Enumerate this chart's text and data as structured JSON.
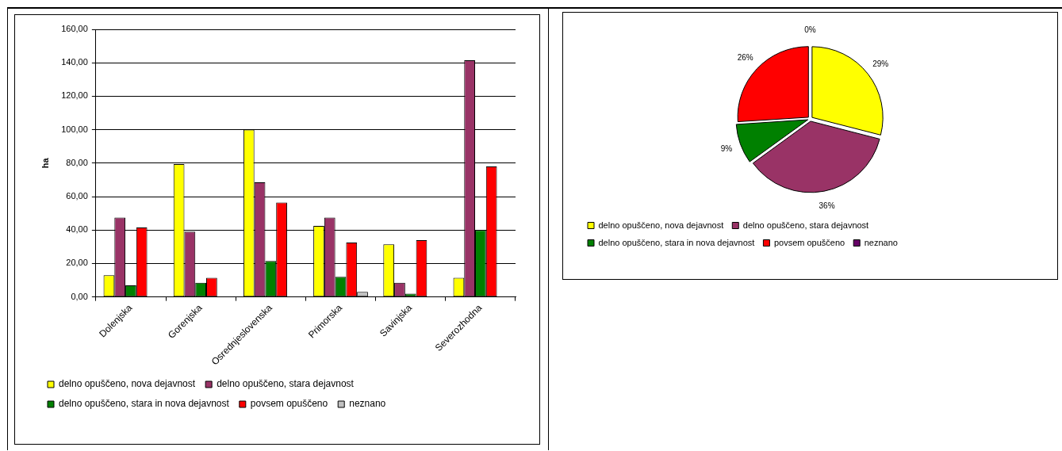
{
  "chart_data": [
    {
      "type": "bar",
      "ylabel": "ha",
      "categories": [
        "Dolenjska",
        "Gorenjska",
        "Osrednjeslovenska",
        "Primorska",
        "Savinjska",
        "Severozhodna"
      ],
      "series": [
        {
          "name": "delno opuščeno, nova dejavnost",
          "color": "#ffff00",
          "values": [
            13,
            79.5,
            100,
            42.5,
            31.5,
            11.5
          ]
        },
        {
          "name": "delno opuščeno, stara dejavnost",
          "color": "#993366",
          "values": [
            47.5,
            39,
            68.5,
            47.5,
            8.5,
            141.5
          ]
        },
        {
          "name": "delno opuščeno, stara in nova dejavnost",
          "color": "#008000",
          "values": [
            7,
            8.5,
            21.5,
            12,
            2,
            40
          ]
        },
        {
          "name": "povsem opuščeno",
          "color": "#ff0000",
          "values": [
            41.5,
            11.5,
            56.5,
            32.5,
            34,
            78
          ]
        },
        {
          "name": "neznano",
          "color": "#c0c0c0",
          "values": [
            null,
            null,
            null,
            3,
            null,
            null
          ]
        }
      ],
      "ylim": [
        0,
        160
      ],
      "yticks": [
        {
          "value": 0,
          "label": "0,00"
        },
        {
          "value": 20,
          "label": "20,00"
        },
        {
          "value": 40,
          "label": "40,00"
        },
        {
          "value": 60,
          "label": "60,00"
        },
        {
          "value": 80,
          "label": "80,00"
        },
        {
          "value": 100,
          "label": "100,00"
        },
        {
          "value": 120,
          "label": "120,00"
        },
        {
          "value": 140,
          "label": "140,00"
        },
        {
          "value": 160,
          "label": "160,00"
        }
      ],
      "grid": "y",
      "legend": "bottom"
    },
    {
      "type": "pie",
      "categories": [
        "delno opuščeno, nova dejavnost",
        "delno opuščeno, stara dejavnost",
        "delno opuščeno, stara in nova dejavnost",
        "povsem opuščeno",
        "neznano"
      ],
      "values": [
        29,
        36,
        9,
        26,
        0
      ],
      "colors": [
        "#ffff00",
        "#993366",
        "#008000",
        "#ff0000",
        "#660066"
      ],
      "value_labels": [
        "29%",
        "36%",
        "9%",
        "26%",
        "0%"
      ],
      "legend": "bottom"
    }
  ]
}
